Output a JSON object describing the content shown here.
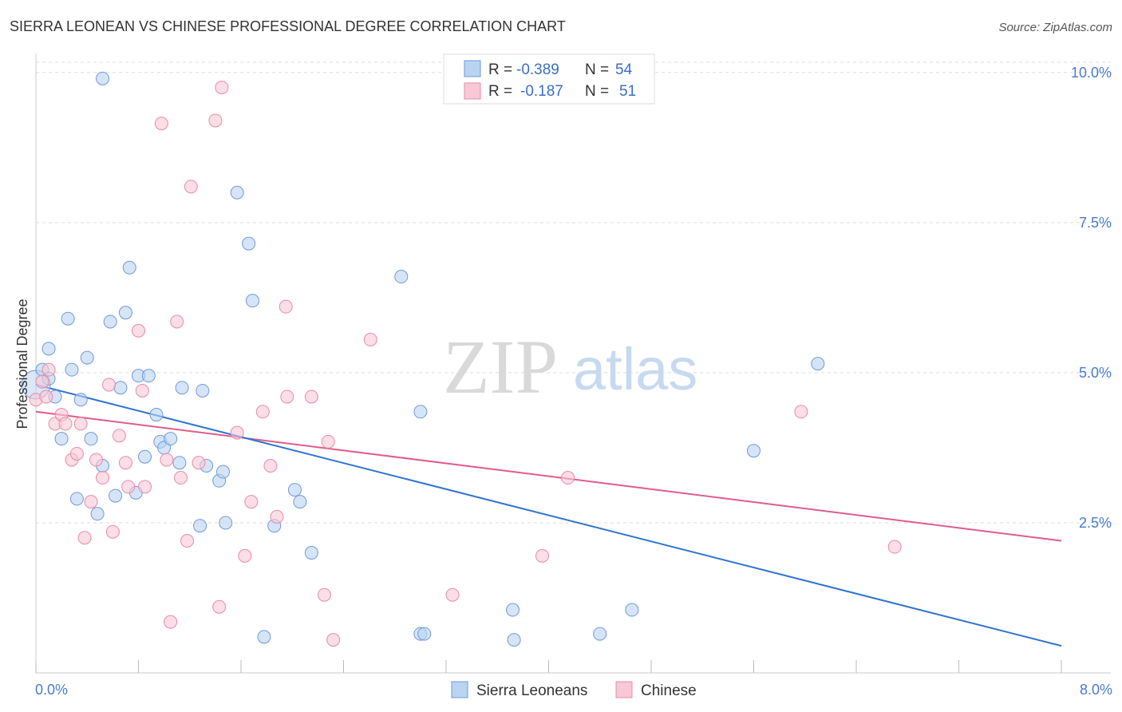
{
  "title": "SIERRA LEONEAN VS CHINESE PROFESSIONAL DEGREE CORRELATION CHART",
  "source": "Source: ZipAtlas.com",
  "watermark": {
    "zip": "ZIP",
    "atlas": "atlas"
  },
  "colors": {
    "blue_fill": "#b9d3f2",
    "blue_stroke": "#6f9ad8",
    "blue_line": "#2f73d2",
    "pink_fill": "#f8c8d6",
    "pink_stroke": "#e88aa8",
    "pink_line": "#e05c8a",
    "grid": "#dddddd",
    "tick_label": "#4a7cc9"
  },
  "legend": {
    "rows": [
      {
        "r_label": "R =",
        "r_value": "-0.389",
        "n_label": "N =",
        "n_value": "54"
      },
      {
        "r_label": "R =",
        "r_value": "-0.187",
        "n_label": "N =",
        "n_value": "51"
      }
    ]
  },
  "bottom_legend": [
    "Sierra Leoneans",
    "Chinese"
  ],
  "chart_data": {
    "type": "scatter",
    "title": "SIERRA LEONEAN VS CHINESE PROFESSIONAL DEGREE CORRELATION CHART",
    "xlabel": "",
    "ylabel": "Professional Degree",
    "xlim": [
      0,
      8
    ],
    "ylim": [
      0,
      10.25
    ],
    "x_tick_labels": [
      "0.0%",
      "8.0%"
    ],
    "y_ticks": [
      2.5,
      5.0,
      7.5,
      10.0
    ],
    "y_tick_labels": [
      "2.5%",
      "5.0%",
      "7.5%",
      "10.0%"
    ],
    "grid": true,
    "series": [
      {
        "name": "Sierra Leoneans",
        "r": -0.389,
        "n": 54,
        "trend": {
          "x0": 0.0,
          "y0": 4.8,
          "x1": 8.0,
          "y1": 0.45
        },
        "points": [
          [
            0.0,
            4.8
          ],
          [
            0.05,
            5.05
          ],
          [
            0.1,
            5.4
          ],
          [
            0.15,
            4.6
          ],
          [
            0.2,
            3.9
          ],
          [
            0.25,
            5.9
          ],
          [
            0.28,
            5.05
          ],
          [
            0.32,
            2.9
          ],
          [
            0.35,
            4.55
          ],
          [
            0.4,
            5.25
          ],
          [
            0.43,
            3.9
          ],
          [
            0.48,
            2.65
          ],
          [
            0.52,
            3.45
          ],
          [
            0.58,
            5.85
          ],
          [
            0.62,
            2.95
          ],
          [
            0.66,
            4.75
          ],
          [
            0.7,
            6.0
          ],
          [
            0.73,
            6.75
          ],
          [
            0.78,
            3.0
          ],
          [
            0.8,
            4.95
          ],
          [
            0.85,
            3.6
          ],
          [
            0.88,
            4.95
          ],
          [
            0.94,
            4.3
          ],
          [
            0.97,
            3.85
          ],
          [
            1.0,
            3.75
          ],
          [
            1.05,
            3.9
          ],
          [
            1.12,
            3.5
          ],
          [
            1.14,
            4.75
          ],
          [
            1.28,
            2.45
          ],
          [
            1.3,
            4.7
          ],
          [
            1.33,
            3.45
          ],
          [
            1.43,
            3.2
          ],
          [
            1.46,
            3.35
          ],
          [
            1.48,
            2.5
          ],
          [
            1.57,
            8.0
          ],
          [
            1.66,
            7.15
          ],
          [
            1.69,
            6.2
          ],
          [
            1.86,
            2.45
          ],
          [
            2.02,
            3.05
          ],
          [
            2.06,
            2.85
          ],
          [
            2.15,
            2.0
          ],
          [
            1.78,
            0.6
          ],
          [
            2.85,
            6.6
          ],
          [
            3.0,
            4.35
          ],
          [
            3.0,
            0.65
          ],
          [
            3.03,
            0.65
          ],
          [
            3.72,
            1.05
          ],
          [
            3.73,
            0.55
          ],
          [
            4.4,
            0.65
          ],
          [
            4.65,
            1.05
          ],
          [
            5.6,
            3.7
          ],
          [
            6.1,
            5.15
          ],
          [
            0.52,
            9.9
          ],
          [
            0.1,
            4.9
          ]
        ]
      },
      {
        "name": "Chinese",
        "r": -0.187,
        "n": 51,
        "trend": {
          "x0": 0.0,
          "y0": 4.35,
          "x1": 8.0,
          "y1": 2.2
        },
        "points": [
          [
            0.05,
            4.85
          ],
          [
            0.1,
            5.05
          ],
          [
            0.15,
            4.15
          ],
          [
            0.2,
            4.3
          ],
          [
            0.23,
            4.15
          ],
          [
            0.28,
            3.55
          ],
          [
            0.32,
            3.65
          ],
          [
            0.35,
            4.15
          ],
          [
            0.38,
            2.25
          ],
          [
            0.43,
            2.85
          ],
          [
            0.47,
            3.55
          ],
          [
            0.52,
            3.25
          ],
          [
            0.57,
            4.8
          ],
          [
            0.6,
            2.35
          ],
          [
            0.65,
            3.95
          ],
          [
            0.7,
            3.5
          ],
          [
            0.72,
            3.1
          ],
          [
            0.8,
            5.7
          ],
          [
            0.83,
            4.7
          ],
          [
            0.85,
            3.1
          ],
          [
            0.98,
            9.15
          ],
          [
            1.02,
            3.55
          ],
          [
            1.05,
            0.85
          ],
          [
            1.1,
            5.85
          ],
          [
            1.13,
            3.25
          ],
          [
            1.18,
            2.2
          ],
          [
            1.21,
            8.1
          ],
          [
            1.27,
            3.5
          ],
          [
            1.4,
            9.2
          ],
          [
            1.43,
            1.1
          ],
          [
            1.45,
            9.75
          ],
          [
            1.57,
            4.0
          ],
          [
            1.63,
            1.95
          ],
          [
            1.68,
            2.85
          ],
          [
            1.77,
            4.35
          ],
          [
            1.83,
            3.45
          ],
          [
            1.88,
            2.6
          ],
          [
            1.95,
            6.1
          ],
          [
            1.96,
            4.6
          ],
          [
            2.15,
            4.6
          ],
          [
            2.25,
            1.3
          ],
          [
            2.28,
            3.85
          ],
          [
            2.32,
            0.55
          ],
          [
            2.61,
            5.55
          ],
          [
            3.25,
            1.3
          ],
          [
            3.95,
            1.95
          ],
          [
            4.15,
            3.25
          ],
          [
            5.97,
            4.35
          ],
          [
            6.7,
            2.1
          ],
          [
            0.0,
            4.55
          ],
          [
            0.08,
            4.6
          ]
        ]
      }
    ]
  }
}
